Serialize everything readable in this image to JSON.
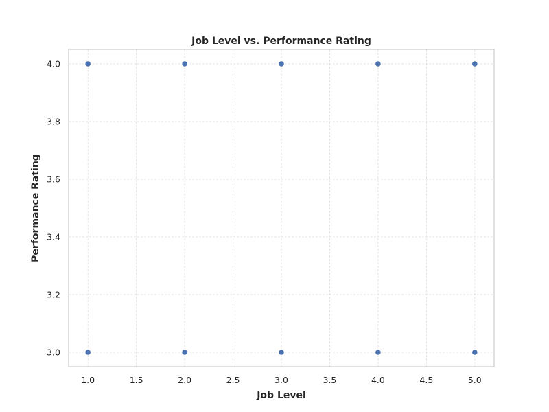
{
  "chart_data": {
    "type": "scatter",
    "title": "Job Level vs. Performance Rating",
    "xlabel": "Job Level",
    "ylabel": "Performance Rating",
    "xlim": [
      0.8,
      5.2
    ],
    "ylim": [
      2.95,
      4.05
    ],
    "xticks": [
      1.0,
      1.5,
      2.0,
      2.5,
      3.0,
      3.5,
      4.0,
      4.5,
      5.0
    ],
    "xtick_labels": [
      "1.0",
      "1.5",
      "2.0",
      "2.5",
      "3.0",
      "3.5",
      "4.0",
      "4.5",
      "5.0"
    ],
    "yticks": [
      3.0,
      3.2,
      3.4,
      3.6,
      3.8,
      4.0
    ],
    "ytick_labels": [
      "3.0",
      "3.2",
      "3.4",
      "3.6",
      "3.8",
      "4.0"
    ],
    "grid": true,
    "point_color": "#4c72b0",
    "points": [
      {
        "x": 1,
        "y": 4.0
      },
      {
        "x": 2,
        "y": 4.0
      },
      {
        "x": 3,
        "y": 4.0
      },
      {
        "x": 4,
        "y": 4.0
      },
      {
        "x": 5,
        "y": 4.0
      },
      {
        "x": 1,
        "y": 3.0
      },
      {
        "x": 2,
        "y": 3.0
      },
      {
        "x": 3,
        "y": 3.0
      },
      {
        "x": 4,
        "y": 3.0
      },
      {
        "x": 5,
        "y": 3.0
      }
    ]
  }
}
